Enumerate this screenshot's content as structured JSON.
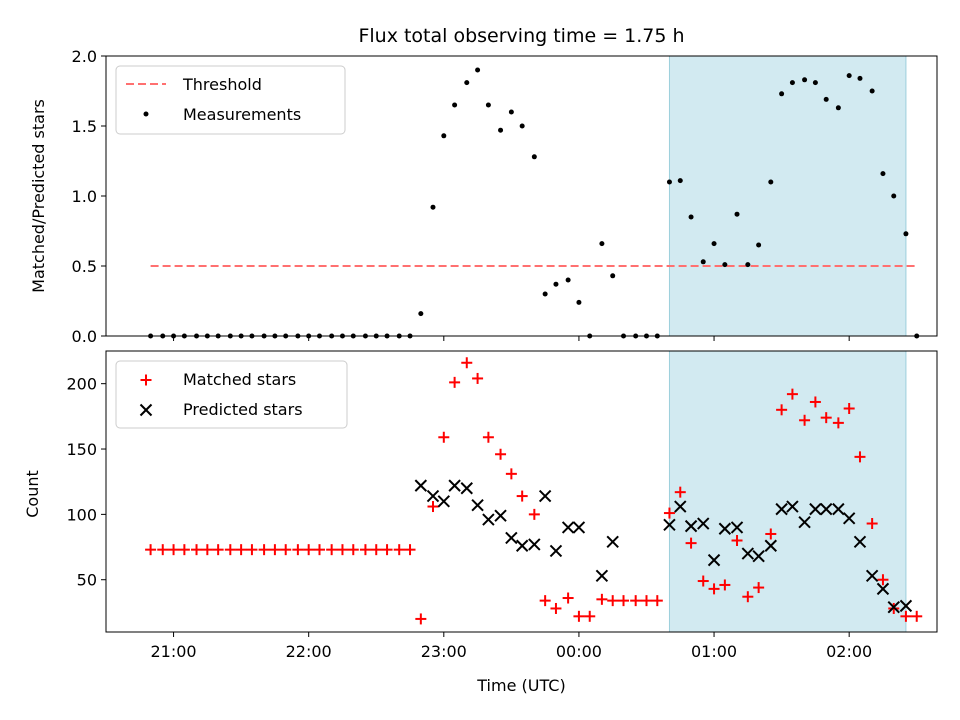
{
  "chart_data": {
    "type": "scatter",
    "title": "Flux total observing time = 1.75 h",
    "shared_x": {
      "xlabel": "Time (UTC)",
      "unit": "hours since 20:00 UTC",
      "range": [
        0.5,
        6.65
      ],
      "tick_values": [
        1,
        2,
        3,
        4,
        5,
        6
      ],
      "tick_labels": [
        "21:00",
        "22:00",
        "23:00",
        "00:00",
        "01:00",
        "02:00"
      ]
    },
    "highlight_span": {
      "from": 4.67,
      "to": 6.42,
      "color": "#add8e6"
    },
    "panels": [
      {
        "id": "ratio",
        "ylabel": "Matched/Predicted stars",
        "ylim": [
          0,
          2
        ],
        "yticks": [
          0,
          0.5,
          1,
          1.5,
          2
        ],
        "ytick_labels": [
          "0.0",
          "0.5",
          "1.0",
          "1.5",
          "2.0"
        ],
        "legend": {
          "placement": "top-left",
          "items": [
            {
              "key": "threshold",
              "label": "Threshold"
            },
            {
              "key": "measurements",
              "label": "Measurements"
            }
          ]
        },
        "threshold": {
          "value": 0.5,
          "from": 0.83,
          "to": 6.5,
          "color": "#ff7070"
        },
        "measurements": {
          "color": "#000000",
          "x": [
            0.83,
            0.92,
            1.0,
            1.08,
            1.17,
            1.25,
            1.33,
            1.42,
            1.5,
            1.58,
            1.67,
            1.75,
            1.83,
            1.92,
            2.0,
            2.08,
            2.17,
            2.25,
            2.33,
            2.42,
            2.5,
            2.58,
            2.67,
            2.75,
            2.83,
            2.92,
            3.0,
            3.08,
            3.17,
            3.25,
            3.33,
            3.42,
            3.5,
            3.58,
            3.67,
            3.75,
            3.83,
            3.92,
            4.0,
            4.08,
            4.17,
            4.25,
            4.33,
            4.42,
            4.5,
            4.58,
            4.67,
            4.75,
            4.83,
            4.92,
            5.0,
            5.08,
            5.17,
            5.25,
            5.33,
            5.42,
            5.5,
            5.58,
            5.67,
            5.75,
            5.83,
            5.92,
            6.0,
            6.08,
            6.17,
            6.25,
            6.33,
            6.42,
            6.5
          ],
          "y": [
            0,
            0,
            0,
            0,
            0,
            0,
            0,
            0,
            0,
            0,
            0,
            0,
            0,
            0,
            0,
            0,
            0,
            0,
            0,
            0,
            0,
            0,
            0,
            0,
            0.16,
            0.92,
            1.43,
            1.65,
            1.81,
            1.9,
            1.65,
            1.47,
            1.6,
            1.5,
            1.28,
            0.3,
            0.37,
            0.4,
            0.24,
            0,
            0.66,
            0.43,
            0,
            0,
            0,
            0,
            1.1,
            1.11,
            0.85,
            0.53,
            0.66,
            0.51,
            0.87,
            0.51,
            0.65,
            1.1,
            1.73,
            1.81,
            1.83,
            1.81,
            1.69,
            1.63,
            1.86,
            1.84,
            1.75,
            1.16,
            1.0,
            0.73,
            0
          ]
        }
      },
      {
        "id": "count",
        "ylabel": "Count",
        "ylim": [
          10,
          225
        ],
        "yticks": [
          50,
          100,
          150,
          200
        ],
        "ytick_labels": [
          "50",
          "100",
          "150",
          "200"
        ],
        "legend": {
          "placement": "top-left"
        },
        "series": [
          {
            "key": "matched",
            "name": "Matched stars",
            "marker": "plus",
            "color": "#ff0000",
            "x": [
              0.83,
              0.92,
              1.0,
              1.08,
              1.17,
              1.25,
              1.33,
              1.42,
              1.5,
              1.58,
              1.67,
              1.75,
              1.83,
              1.92,
              2.0,
              2.08,
              2.17,
              2.25,
              2.33,
              2.42,
              2.5,
              2.58,
              2.67,
              2.75,
              2.83,
              2.92,
              3.0,
              3.08,
              3.17,
              3.25,
              3.33,
              3.42,
              3.5,
              3.58,
              3.67,
              3.75,
              3.83,
              3.92,
              4.0,
              4.08,
              4.17,
              4.25,
              4.33,
              4.42,
              4.5,
              4.58,
              4.67,
              4.75,
              4.83,
              4.92,
              5.0,
              5.08,
              5.17,
              5.25,
              5.33,
              5.42,
              5.5,
              5.58,
              5.67,
              5.75,
              5.83,
              5.92,
              6.0,
              6.08,
              6.17,
              6.25,
              6.33,
              6.42,
              6.5
            ],
            "y": [
              73,
              73,
              73,
              73,
              73,
              73,
              73,
              73,
              73,
              73,
              73,
              73,
              73,
              73,
              73,
              73,
              73,
              73,
              73,
              73,
              73,
              73,
              73,
              73,
              20,
              106,
              159,
              201,
              216,
              204,
              159,
              146,
              131,
              114,
              100,
              34,
              28,
              36,
              22,
              22,
              35,
              34,
              34,
              34,
              34,
              34,
              101,
              117,
              78,
              49,
              43,
              46,
              80,
              37,
              44,
              85,
              180,
              192,
              172,
              186,
              174,
              170,
              181,
              144,
              93,
              50,
              28,
              22,
              22
            ]
          },
          {
            "key": "predicted",
            "name": "Predicted stars",
            "marker": "x",
            "color": "#000000",
            "x": [
              2.83,
              2.92,
              3.0,
              3.08,
              3.17,
              3.25,
              3.33,
              3.42,
              3.5,
              3.58,
              3.67,
              3.75,
              3.83,
              3.92,
              4.0,
              4.17,
              4.25,
              4.67,
              4.75,
              4.83,
              4.92,
              5.0,
              5.08,
              5.17,
              5.25,
              5.33,
              5.42,
              5.5,
              5.58,
              5.67,
              5.75,
              5.83,
              5.92,
              6.0,
              6.08,
              6.17,
              6.25,
              6.33,
              6.42
            ],
            "y": [
              122,
              114,
              110,
              122,
              120,
              107,
              96,
              99,
              82,
              76,
              77,
              114,
              72,
              90,
              90,
              53,
              79,
              92,
              106,
              91,
              93,
              65,
              89,
              90,
              70,
              68,
              76,
              104,
              106,
              94,
              104,
              104,
              104,
              97,
              79,
              53,
              43,
              29,
              30
            ]
          }
        ]
      }
    ]
  }
}
